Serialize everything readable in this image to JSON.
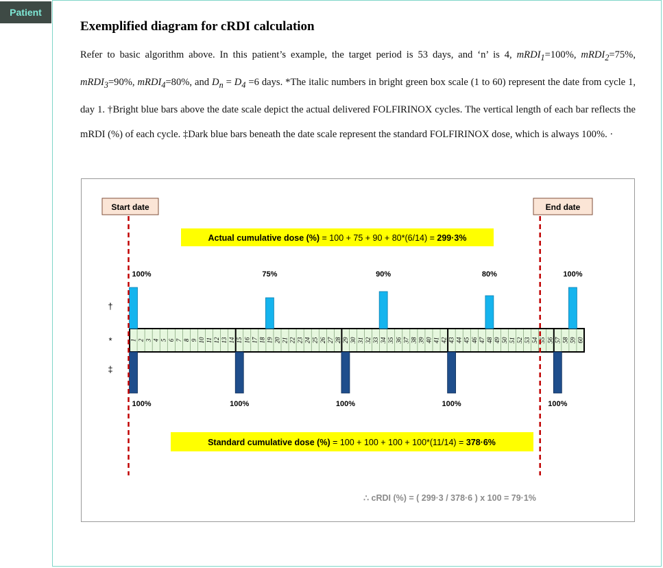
{
  "tab": "Patient",
  "title": "Exemplified diagram for cRDI calculation",
  "paragraph": {
    "p1": "Refer to basic algorithm above. In this patient’s example, the target period is 53 days, and ‘n’ is 4, ",
    "m1": "mRDI",
    "s1": "1",
    "v1": "=100%, ",
    "m2": "mRDI",
    "s2": "2",
    "v2": "=75%, ",
    "m3": "mRDI",
    "s3": "3",
    "v3": "=90%, ",
    "m4": "mRDI",
    "s4": "4",
    "v4": "=80%, and ",
    "dn": "D",
    "dns": "n",
    "eq": " = ",
    "d4": "D",
    "d4s": "4",
    "p2": " =6 days. *The italic numbers in bright green box scale (1 to 60) represent the date from cycle 1, day 1. †Bright blue bars above the date scale depict the actual delivered FOLFIRINOX cycles. The vertical length of each bar reflects the mRDI (%) of each cycle. ‡Dark blue bars beneath the date scale represent the standard FOLFIRINOX dose, which is always 100%. ·"
  },
  "figure": {
    "start_label": "Start date",
    "end_label": "End date",
    "actual_formula_bold": "Actual cumulative dose (%)",
    "actual_formula_rest": " = 100 + 75 + 90 + 80*(6/14) = ",
    "actual_result": "299·3%",
    "standard_formula_bold": "Standard cumulative dose (%)",
    "standard_formula_rest": " = 100 + 100 + 100 + 100*(11/14) = ",
    "standard_result": "378·6%",
    "crdi": "∴  cRDI (%) = ( 299·3 / 378·6 ) x 100 = 79·1%",
    "marker_actual": "†",
    "marker_scale": "*",
    "marker_standard": "‡",
    "actual_bars": [
      {
        "day": 1,
        "value": 100,
        "label": "100%"
      },
      {
        "day": 19,
        "value": 75,
        "label": "75%"
      },
      {
        "day": 34,
        "value": 90,
        "label": "90%"
      },
      {
        "day": 48,
        "value": 80,
        "label": "80%"
      },
      {
        "day": 59,
        "value": 100,
        "label": "100%"
      }
    ],
    "standard_bars": [
      {
        "day": 1,
        "value": 100,
        "label": "100%"
      },
      {
        "day": 15,
        "value": 100,
        "label": "100%"
      },
      {
        "day": 29,
        "value": 100,
        "label": "100%"
      },
      {
        "day": 43,
        "value": 100,
        "label": "100%"
      },
      {
        "day": 57,
        "value": 100,
        "label": "100%"
      }
    ],
    "scale_start": 1,
    "scale_end": 60,
    "cycle_boundaries": [
      15,
      29,
      43,
      57
    ],
    "start_day": 1,
    "end_day": 54,
    "colors": {
      "actual_bar": "#15b4ee",
      "standard_bar": "#1f4e8c",
      "scale_fill": "#e6f7de",
      "highlight": "#ffff00",
      "dashed_line": "#c00000",
      "label_box": "#fbe5d6"
    }
  }
}
